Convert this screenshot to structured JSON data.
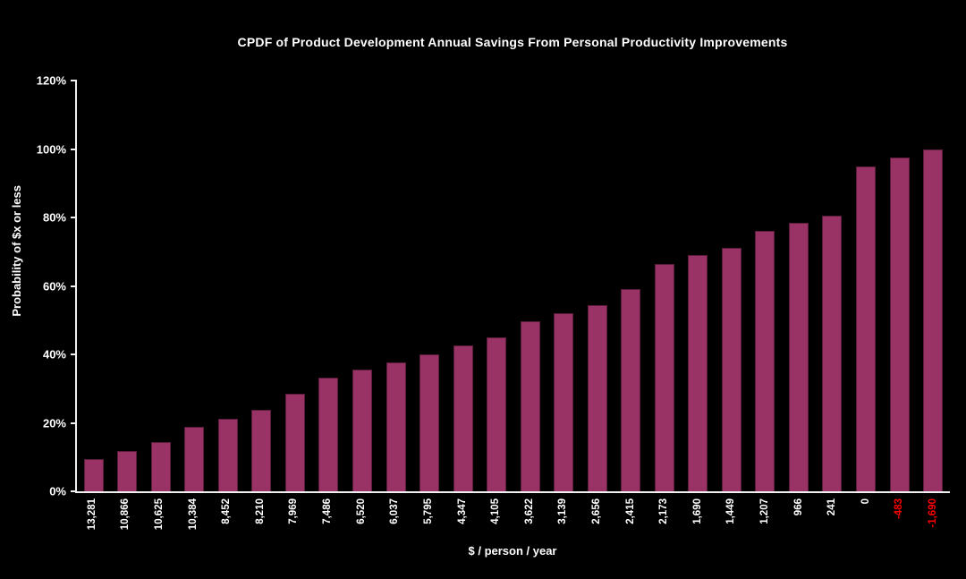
{
  "chart_data": {
    "type": "bar",
    "title": "CPDF of Product Development Annual Savings From Personal Productivity Improvements",
    "xlabel": "$ / person / year",
    "ylabel": "Probability of $x or less",
    "categories": [
      "13,281",
      "10,866",
      "10,625",
      "10,384",
      "8,452",
      "8,210",
      "7,969",
      "7,486",
      "6,520",
      "6,037",
      "5,795",
      "4,347",
      "4,105",
      "3,622",
      "3,139",
      "2,656",
      "2,415",
      "2,173",
      "1,690",
      "1,449",
      "1,207",
      "966",
      "241",
      "0",
      "-483",
      "-1,690"
    ],
    "values": [
      9.5,
      11.8,
      14.3,
      18.9,
      21.2,
      23.9,
      28.4,
      33.3,
      35.5,
      37.6,
      40.0,
      42.5,
      45.0,
      49.6,
      52.1,
      54.5,
      59.0,
      66.3,
      69.0,
      71.2,
      76.0,
      78.5,
      80.6,
      95.0,
      97.5,
      99.8
    ],
    "y_ticks": [
      "0%",
      "20%",
      "40%",
      "60%",
      "80%",
      "100%",
      "120%"
    ],
    "ylim": [
      0,
      120
    ],
    "grid": false,
    "legend": false,
    "layout": {
      "legend_position": "none",
      "bar_label_rotation_deg": -90
    },
    "colors": {
      "background": "#000000",
      "bar_fill": "#9a3365",
      "bar_border": "#5a1e3c",
      "text": "#ffffff",
      "axis": "#f0f0f0",
      "negative_label": "#ff0000"
    }
  }
}
